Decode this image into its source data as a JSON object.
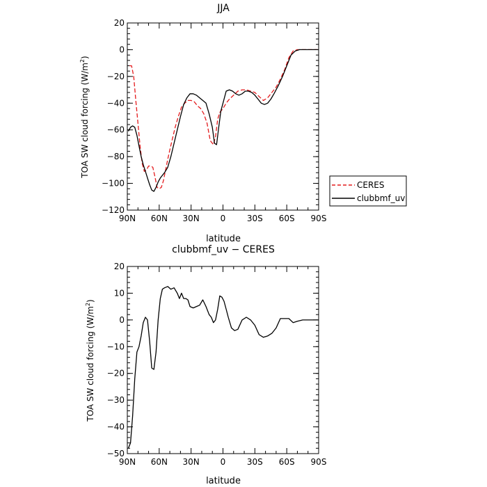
{
  "chart_data": [
    {
      "type": "line",
      "title": "JJA",
      "xlabel": "latitude",
      "ylabel_main": "TOA SW cloud forcing (W/m",
      "ylabel_sup": "2",
      "ylabel_end": ")",
      "xlim": [
        90,
        -90
      ],
      "ylim": [
        -120,
        20
      ],
      "x_ticks": [
        90,
        60,
        30,
        0,
        -30,
        -60,
        -90
      ],
      "x_tick_labels": [
        "90N",
        "60N",
        "30N",
        "0",
        "30S",
        "60S",
        "90S"
      ],
      "y_ticks": [
        -120,
        -100,
        -80,
        -60,
        -40,
        -20,
        0,
        20
      ],
      "y_tick_labels": [
        "−120",
        "−100",
        "−80",
        "−60",
        "−40",
        "−20",
        "0",
        "20"
      ],
      "legend": {
        "placement": "right"
      },
      "series": [
        {
          "name": "CERES",
          "color": "#e41a1c",
          "dash": "dashed",
          "x": [
            88,
            86,
            84,
            82,
            80,
            78,
            76,
            74,
            72,
            70,
            68,
            66,
            64,
            62,
            60,
            58,
            56,
            54,
            52,
            50,
            48,
            45,
            42,
            39,
            36,
            33,
            30,
            27,
            24,
            21,
            18,
            15,
            12,
            9,
            7,
            5,
            3,
            0,
            -3,
            -6,
            -10,
            -14,
            -18,
            -22,
            -26,
            -30,
            -34,
            -38,
            -42,
            -46,
            -50,
            -54,
            -58,
            -62,
            -66,
            -70,
            -75,
            -80,
            -85,
            -89
          ],
          "y": [
            -12,
            -12,
            -20,
            -38,
            -55,
            -72,
            -85,
            -91,
            -90,
            -87,
            -87,
            -88,
            -95,
            -103,
            -104,
            -103,
            -98,
            -90,
            -82,
            -75,
            -68,
            -58,
            -50,
            -43,
            -40,
            -38,
            -38,
            -39,
            -42,
            -44,
            -48,
            -55,
            -68,
            -71,
            -65,
            -52,
            -47,
            -44,
            -40,
            -37,
            -34,
            -31,
            -30,
            -30,
            -31,
            -32,
            -35,
            -38,
            -36,
            -32,
            -28,
            -22,
            -15,
            -6,
            -1,
            0,
            0,
            0,
            0,
            0
          ]
        },
        {
          "name": "clubbmf_uv",
          "color": "#000000",
          "dash": "solid",
          "x": [
            89,
            87,
            85,
            83,
            81,
            79,
            77,
            75,
            73,
            71,
            69,
            67,
            65,
            63,
            61,
            59,
            57,
            55,
            52,
            49,
            46,
            43,
            40,
            37,
            34,
            31,
            28,
            25,
            22,
            19,
            16,
            13,
            10,
            8,
            6,
            4,
            2,
            0,
            -3,
            -6,
            -9,
            -12,
            -15,
            -18,
            -21,
            -24,
            -27,
            -30,
            -33,
            -36,
            -39,
            -42,
            -45,
            -48,
            -52,
            -56,
            -60,
            -64,
            -68,
            -72,
            -78,
            -84,
            -89
          ],
          "y": [
            -61,
            -58,
            -57,
            -58,
            -64,
            -72,
            -80,
            -86,
            -91,
            -96,
            -101,
            -105,
            -106,
            -103,
            -99,
            -96,
            -94,
            -92,
            -88,
            -80,
            -70,
            -60,
            -50,
            -41,
            -36,
            -33,
            -33,
            -34,
            -36,
            -38,
            -40,
            -48,
            -58,
            -70,
            -71,
            -58,
            -46,
            -40,
            -31,
            -30,
            -31,
            -33,
            -34,
            -33,
            -31,
            -31,
            -32,
            -34,
            -37,
            -40,
            -41,
            -40,
            -37,
            -33,
            -27,
            -20,
            -12,
            -4,
            -1,
            0,
            0,
            0,
            0
          ]
        }
      ]
    },
    {
      "type": "line",
      "title": "clubbmf_uv − CERES",
      "xlabel": "latitude",
      "ylabel_main": "TOA SW cloud forcing (W/m",
      "ylabel_sup": "2",
      "ylabel_end": ")",
      "xlim": [
        90,
        -90
      ],
      "ylim": [
        -50,
        20
      ],
      "x_ticks": [
        90,
        60,
        30,
        0,
        -30,
        -60,
        -90
      ],
      "x_tick_labels": [
        "90N",
        "60N",
        "30N",
        "0",
        "30S",
        "60S",
        "90S"
      ],
      "y_ticks": [
        -50,
        -40,
        -30,
        -20,
        -10,
        0,
        10,
        20
      ],
      "y_tick_labels": [
        "−50",
        "−40",
        "−30",
        "−20",
        "−10",
        "0",
        "10",
        "20"
      ],
      "series": [
        {
          "name": "",
          "color": "#000000",
          "dash": "solid",
          "x": [
            89,
            87,
            85,
            83,
            81,
            79,
            77,
            75,
            73,
            71,
            69,
            67,
            65,
            63,
            61,
            59,
            57,
            55,
            52,
            49,
            46,
            43,
            41,
            39,
            37,
            35,
            33,
            31,
            28,
            25,
            22,
            19,
            16,
            13,
            11,
            9,
            7,
            5,
            3,
            1,
            -1,
            -3,
            -5,
            -8,
            -11,
            -14,
            -18,
            -22,
            -26,
            -30,
            -34,
            -38,
            -42,
            -46,
            -50,
            -54,
            -58,
            -62,
            -66,
            -70,
            -75,
            -80,
            -85,
            -89
          ],
          "y": [
            -48,
            -46,
            -36,
            -22,
            -12,
            -10,
            -6,
            -1,
            1,
            0,
            -8,
            -18,
            -18.5,
            -12,
            0,
            8,
            11.5,
            12,
            12.5,
            11.5,
            12,
            10,
            8,
            10,
            8,
            8,
            7.5,
            5,
            4.5,
            5,
            5.5,
            7.5,
            5,
            2,
            1,
            -1,
            0,
            4,
            9,
            8.5,
            7,
            4,
            1,
            -3,
            -4,
            -3.5,
            0,
            1,
            0,
            -2,
            -5.5,
            -6.5,
            -6,
            -5,
            -3,
            0.5,
            0.5,
            0.5,
            -1,
            -0.5,
            0,
            0,
            0,
            0
          ]
        }
      ]
    }
  ]
}
